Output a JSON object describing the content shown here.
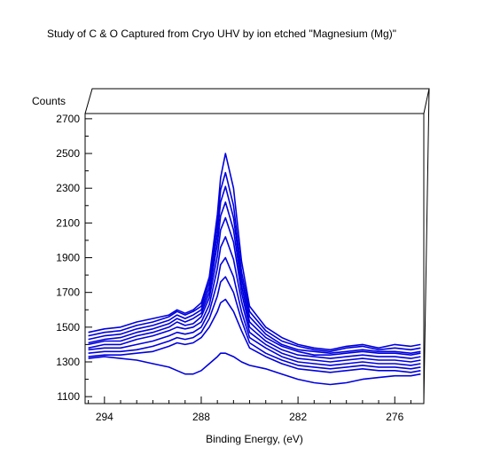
{
  "chart_data": {
    "type": "line",
    "title": "Study of C & O Captured from Cryo UHV by ion etched \"Magnesium (Mg)\"",
    "xlabel": "Binding Energy, (eV)",
    "ylabel": "Counts",
    "x_reversed": true,
    "xlim": [
      295.2,
      274.2
    ],
    "ylim": [
      1060,
      2730
    ],
    "x_ticks": [
      294,
      288,
      282,
      276
    ],
    "y_ticks": [
      1100,
      1300,
      1500,
      1700,
      1900,
      2100,
      2300,
      2500,
      2700
    ],
    "grid": false,
    "line_color": "#0000dd",
    "box_3d": true,
    "series": [
      {
        "x": [
          295,
          294,
          293,
          292,
          291,
          290,
          289.5,
          289,
          288.5,
          288,
          287.5,
          287,
          286.8,
          286.5,
          286,
          285.5,
          285,
          284,
          283,
          282,
          281,
          280,
          279,
          278,
          277,
          276,
          275,
          274.4
        ],
        "y": [
          1470,
          1490,
          1500,
          1530,
          1550,
          1570,
          1600,
          1580,
          1600,
          1640,
          1790,
          2150,
          2360,
          2500,
          2300,
          1880,
          1620,
          1500,
          1440,
          1400,
          1380,
          1370,
          1390,
          1400,
          1380,
          1400,
          1390,
          1400
        ]
      },
      {
        "x": [
          295,
          294,
          293,
          292,
          291,
          290,
          289.5,
          289,
          288.5,
          288,
          287.5,
          287,
          286.8,
          286.5,
          286,
          285.5,
          285,
          284,
          283,
          282,
          281,
          280,
          279,
          278,
          277,
          276,
          275,
          274.4
        ],
        "y": [
          1450,
          1470,
          1480,
          1510,
          1530,
          1560,
          1590,
          1570,
          1590,
          1620,
          1760,
          2100,
          2290,
          2390,
          2200,
          1820,
          1590,
          1480,
          1420,
          1390,
          1370,
          1360,
          1380,
          1390,
          1370,
          1380,
          1370,
          1380
        ]
      },
      {
        "x": [
          295,
          294,
          293,
          292,
          291,
          290,
          289.5,
          289,
          288.5,
          288,
          287.5,
          287,
          286.8,
          286.5,
          286,
          285.5,
          285,
          284,
          283,
          282,
          281,
          280,
          279,
          278,
          277,
          276,
          275,
          274.4
        ],
        "y": [
          1430,
          1450,
          1460,
          1490,
          1510,
          1540,
          1570,
          1550,
          1570,
          1600,
          1730,
          2040,
          2220,
          2310,
          2130,
          1780,
          1560,
          1460,
          1400,
          1370,
          1360,
          1350,
          1360,
          1370,
          1360,
          1360,
          1350,
          1360
        ]
      },
      {
        "x": [
          295,
          294,
          293,
          292,
          291,
          290,
          289.5,
          289,
          288.5,
          288,
          287.5,
          287,
          286.8,
          286.5,
          286,
          285.5,
          285,
          284,
          283,
          282,
          281,
          280,
          279,
          278,
          277,
          276,
          275,
          274.4
        ],
        "y": [
          1410,
          1430,
          1440,
          1470,
          1490,
          1520,
          1550,
          1530,
          1550,
          1580,
          1700,
          1980,
          2140,
          2220,
          2060,
          1740,
          1530,
          1440,
          1390,
          1360,
          1340,
          1340,
          1350,
          1360,
          1350,
          1350,
          1340,
          1350
        ]
      },
      {
        "x": [
          295,
          294,
          293,
          292,
          291,
          290,
          289.5,
          289,
          288.5,
          288,
          287.5,
          287,
          286.8,
          286.5,
          286,
          285.5,
          285,
          284,
          283,
          282,
          281,
          280,
          279,
          278,
          277,
          276,
          275,
          274.4
        ],
        "y": [
          1400,
          1420,
          1420,
          1450,
          1470,
          1500,
          1530,
          1510,
          1520,
          1560,
          1670,
          1910,
          2060,
          2130,
          1990,
          1700,
          1500,
          1420,
          1370,
          1340,
          1330,
          1320,
          1330,
          1340,
          1330,
          1330,
          1320,
          1330
        ]
      },
      {
        "x": [
          295,
          294,
          293,
          292,
          291,
          290,
          289.5,
          289,
          288.5,
          288,
          287.5,
          287,
          286.8,
          286.5,
          286,
          285.5,
          285,
          284,
          283,
          282,
          281,
          280,
          279,
          278,
          277,
          276,
          275,
          274.4
        ],
        "y": [
          1380,
          1400,
          1400,
          1430,
          1450,
          1480,
          1500,
          1490,
          1500,
          1530,
          1630,
          1840,
          1960,
          2020,
          1890,
          1650,
          1470,
          1400,
          1350,
          1320,
          1310,
          1300,
          1310,
          1320,
          1310,
          1310,
          1300,
          1310
        ]
      },
      {
        "x": [
          295,
          294,
          293,
          292,
          291,
          290,
          289.5,
          289,
          288.5,
          288,
          287.5,
          287,
          286.8,
          286.5,
          286,
          285.5,
          285,
          284,
          283,
          282,
          281,
          280,
          279,
          278,
          277,
          276,
          275,
          274.4
        ],
        "y": [
          1370,
          1380,
          1380,
          1400,
          1420,
          1450,
          1470,
          1460,
          1470,
          1500,
          1590,
          1760,
          1860,
          1900,
          1790,
          1590,
          1440,
          1380,
          1330,
          1300,
          1290,
          1280,
          1290,
          1300,
          1290,
          1290,
          1280,
          1290
        ]
      },
      {
        "x": [
          295,
          294,
          293,
          292,
          291,
          290,
          289.5,
          289,
          288.5,
          288,
          287.5,
          287,
          286.8,
          286.5,
          286,
          285.5,
          285,
          284,
          283,
          282,
          281,
          280,
          279,
          278,
          277,
          276,
          275,
          274.4
        ],
        "y": [
          1350,
          1360,
          1360,
          1370,
          1390,
          1420,
          1440,
          1430,
          1440,
          1470,
          1550,
          1680,
          1760,
          1790,
          1700,
          1540,
          1410,
          1350,
          1310,
          1280,
          1270,
          1260,
          1270,
          1280,
          1270,
          1270,
          1260,
          1270
        ]
      },
      {
        "x": [
          295,
          294,
          293,
          292,
          291,
          290,
          289.5,
          289,
          288.5,
          288,
          287.5,
          287,
          286.8,
          286.5,
          286,
          285.5,
          285,
          284,
          283,
          282,
          281,
          280,
          279,
          278,
          277,
          276,
          275,
          274.4
        ],
        "y": [
          1330,
          1340,
          1340,
          1350,
          1360,
          1390,
          1410,
          1400,
          1410,
          1440,
          1500,
          1590,
          1640,
          1660,
          1590,
          1480,
          1380,
          1330,
          1290,
          1260,
          1250,
          1240,
          1250,
          1260,
          1250,
          1250,
          1240,
          1250
        ]
      },
      {
        "x": [
          295,
          294,
          293,
          292,
          291,
          290,
          289.5,
          289,
          288.5,
          288,
          287.5,
          287,
          286.8,
          286.5,
          286,
          285.5,
          285,
          284,
          283,
          282,
          281,
          280,
          279,
          278,
          277,
          276,
          275,
          274.4
        ],
        "y": [
          1320,
          1330,
          1320,
          1310,
          1290,
          1270,
          1250,
          1230,
          1230,
          1250,
          1290,
          1330,
          1350,
          1350,
          1330,
          1300,
          1280,
          1260,
          1230,
          1200,
          1180,
          1170,
          1180,
          1200,
          1210,
          1220,
          1220,
          1230
        ]
      }
    ]
  }
}
